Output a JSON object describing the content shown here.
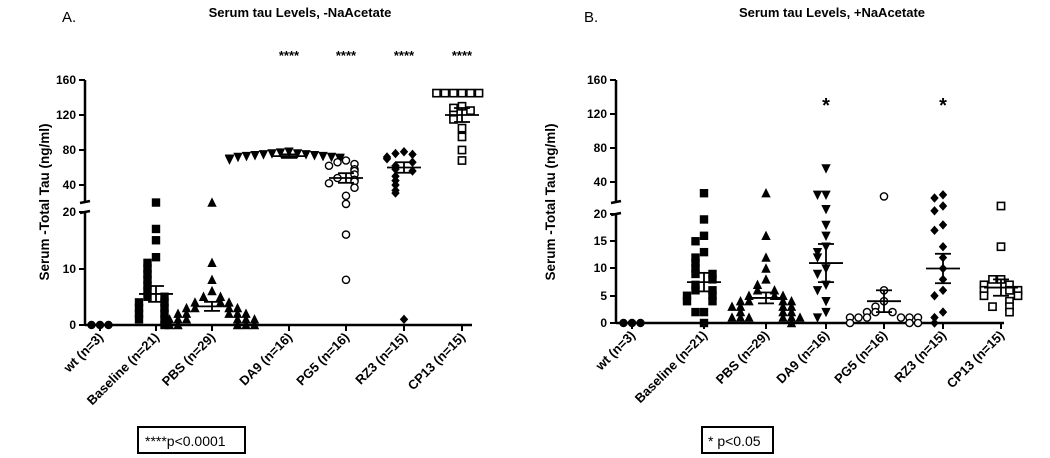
{
  "chart_data": [
    {
      "panel_label": "A.",
      "type": "scatter",
      "title": "Serum tau Levels, -NaAcetate",
      "ylabel": "Serum -Total Tau (ng/ml)",
      "y_axis_broken": true,
      "ylim_lower": [
        0,
        20
      ],
      "ylim_upper": [
        20,
        160
      ],
      "yticks_lower": [
        "0",
        "10",
        "20"
      ],
      "yticks_upper": [
        "40",
        "80",
        "120",
        "160"
      ],
      "categories": [
        "wt (n=3)",
        "Baseline (n=21)",
        "PBS (n=29)",
        "DA9 (n=16)",
        "PG5 (n=16)",
        "RZ3 (n=15)",
        "CP13 (n=15)"
      ],
      "markers": [
        "circle",
        "square",
        "triangle",
        "triangle-down",
        "circle-open",
        "diamond",
        "square-open"
      ],
      "significance": [
        "",
        "",
        "",
        "****",
        "****",
        "****",
        "****"
      ],
      "means": [
        0,
        5.5,
        3.3,
        73,
        48,
        60,
        120
      ],
      "sem": [
        0,
        1.4,
        0.8,
        2.0,
        5.5,
        6.0,
        8.0
      ],
      "points": [
        [
          0,
          0,
          0
        ],
        [
          27,
          17,
          15,
          12,
          11,
          10,
          9,
          8,
          7,
          6,
          5,
          5,
          4,
          4,
          3,
          3,
          2,
          2,
          1,
          1,
          0
        ],
        [
          27,
          11,
          8,
          6,
          5,
          5,
          4,
          4,
          4,
          3,
          3,
          3,
          3,
          2,
          2,
          2,
          2,
          2,
          1,
          1,
          1,
          1,
          1,
          1,
          0,
          0,
          0,
          0,
          0
        ],
        [
          78,
          77,
          76,
          76,
          75,
          75,
          74,
          74,
          73,
          73,
          72,
          72,
          71,
          70,
          70,
          69
        ],
        [
          68,
          66,
          64,
          62,
          58,
          56,
          52,
          48,
          46,
          44,
          42,
          38,
          32,
          26,
          16,
          8
        ],
        [
          78,
          76,
          75,
          72,
          70,
          66,
          62,
          58,
          56,
          50,
          45,
          40,
          36,
          34,
          1
        ],
        [
          145,
          145,
          145,
          145,
          145,
          145,
          130,
          128,
          125,
          120,
          115,
          105,
          95,
          80,
          68
        ]
      ],
      "annotation": "****p<0.0001"
    },
    {
      "panel_label": "B.",
      "type": "scatter",
      "title": "Serum tau Levels, +NaAcetate",
      "ylabel": "Serum -Total Tau (ng/ml)",
      "y_axis_broken": true,
      "ylim_lower": [
        0,
        20
      ],
      "ylim_upper": [
        20,
        160
      ],
      "yticks_lower": [
        "0",
        "5",
        "10",
        "15",
        "20"
      ],
      "yticks_upper": [
        "40",
        "80",
        "120",
        "160"
      ],
      "categories": [
        "wt (n=3)",
        "Baseline (n=21)",
        "PBS (n=29)",
        "DA9 (n=16)",
        "PG5 (n=16)",
        "RZ3 (n=15)",
        "CP13 (n=15)"
      ],
      "markers": [
        "circle",
        "square",
        "triangle",
        "triangle-down",
        "circle-open",
        "diamond",
        "square-open"
      ],
      "significance": [
        "",
        "",
        "",
        "*",
        "",
        "*",
        ""
      ],
      "means": [
        0,
        7.5,
        4.6,
        11.0,
        4.0,
        10.0,
        6.5
      ],
      "sem": [
        0,
        1.7,
        1.0,
        3.5,
        2.0,
        2.7,
        1.5
      ],
      "points": [
        [
          0,
          0,
          0
        ],
        [
          33,
          19,
          16,
          15,
          13,
          12,
          11,
          10,
          9,
          9,
          8,
          7,
          6,
          6,
          5,
          5,
          4,
          4,
          2,
          2,
          0
        ],
        [
          33,
          16,
          12,
          10,
          8,
          7,
          6,
          6,
          5,
          5,
          5,
          4,
          4,
          4,
          4,
          3,
          3,
          3,
          3,
          2,
          2,
          2,
          1,
          1,
          1,
          1,
          1,
          1,
          0
        ],
        [
          56,
          32,
          32,
          23,
          18,
          16,
          14,
          13,
          12,
          10,
          9,
          7,
          6,
          4,
          2,
          1
        ],
        [
          31,
          6,
          4,
          3,
          2,
          2,
          2,
          1,
          1,
          1,
          1,
          1,
          1,
          0,
          0,
          0
        ],
        [
          32,
          30,
          25,
          22,
          18,
          17,
          14,
          12,
          10,
          8,
          6,
          5,
          2,
          1,
          0
        ],
        [
          25,
          14,
          8,
          8,
          7,
          7,
          6,
          6,
          6,
          5,
          5,
          4,
          3,
          3,
          2
        ]
      ],
      "annotation": "* p<0.05"
    }
  ]
}
